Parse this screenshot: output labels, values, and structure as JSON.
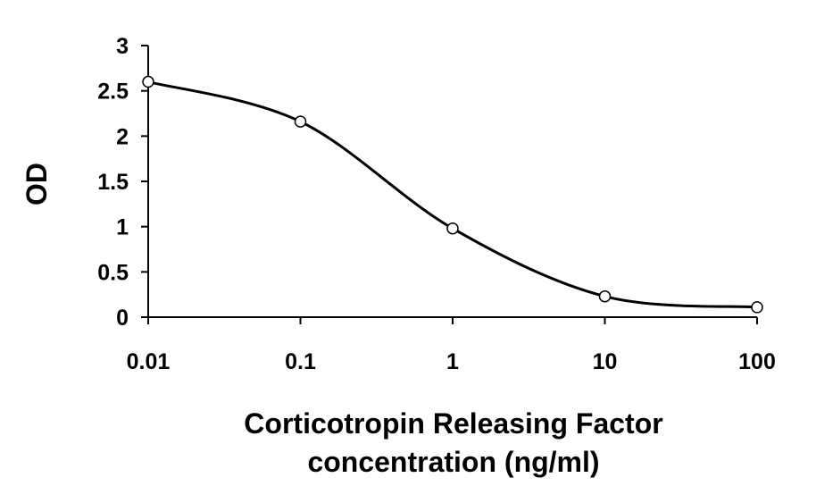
{
  "chart_data": {
    "type": "line",
    "title": "",
    "xlabel_lines": [
      "Corticotropin Releasing Factor",
      "concentration (ng/ml)"
    ],
    "ylabel": "OD",
    "x_scale": "log",
    "xlim": [
      0.01,
      100
    ],
    "ylim": [
      0,
      3
    ],
    "x_ticks": [
      0.01,
      0.1,
      1,
      10,
      100
    ],
    "x_tick_labels": [
      "0.01",
      "0.1",
      "1",
      "10",
      "100"
    ],
    "y_ticks": [
      0,
      0.5,
      1,
      1.5,
      2,
      2.5,
      3
    ],
    "y_tick_labels": [
      "0",
      "0.5",
      "1",
      "1.5",
      "2",
      "2.5",
      "3"
    ],
    "grid": false,
    "legend": "none",
    "smooth": true,
    "series": [
      {
        "x": [
          0.01,
          0.1,
          1,
          10,
          100
        ],
        "y": [
          2.6,
          2.16,
          0.98,
          0.23,
          0.11
        ]
      }
    ],
    "colors": {
      "line": "#000000",
      "marker_fill": "#ffffff",
      "marker_stroke": "#000000",
      "axis": "#000000"
    }
  }
}
